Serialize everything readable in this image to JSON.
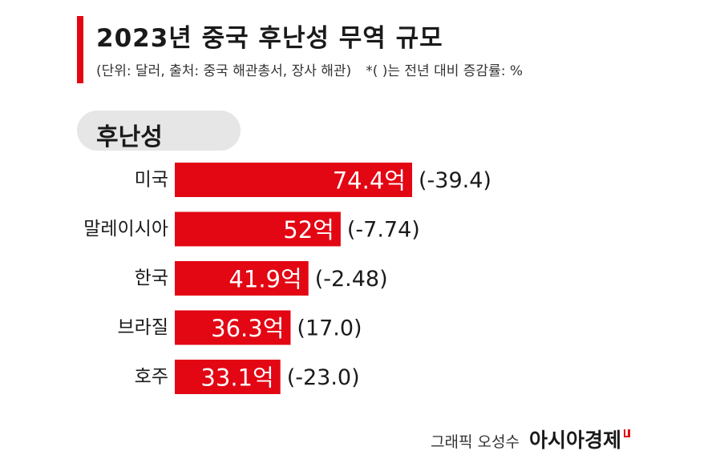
{
  "header": {
    "title": "2023년 중국 후난성 무역 규모",
    "source": "(단위: 달러, 출처: 중국 해관총서, 장사 해관)",
    "note": "*( )는 전년 대비 증감률: %"
  },
  "badge": {
    "label": "후난성"
  },
  "chart_data": {
    "type": "bar",
    "orientation": "horizontal",
    "title": "2023년 중국 후난성 무역 규모",
    "categories": [
      "미국",
      "말레이시아",
      "한국",
      "브라질",
      "호주"
    ],
    "values": [
      74.4,
      52,
      41.9,
      36.3,
      33.1
    ],
    "value_labels": [
      "74.4억",
      "52억",
      "41.9억",
      "36.3억",
      "33.1억"
    ],
    "change_labels": [
      "(-39.4)",
      "(-7.74)",
      "(-2.48)",
      "(17.0)",
      "(-23.0)"
    ],
    "change_values": [
      -39.4,
      -7.74,
      -2.48,
      17.0,
      -23.0
    ],
    "unit": "억 달러",
    "xlim": [
      0,
      74.4
    ],
    "bar_color": "#e30613",
    "grid": false,
    "legend": "none"
  },
  "footer": {
    "credit": "그래픽 오성수",
    "logo": "아시아경제"
  },
  "colors": {
    "accent": "#e30613",
    "badge_bg": "#e6e6e6"
  }
}
